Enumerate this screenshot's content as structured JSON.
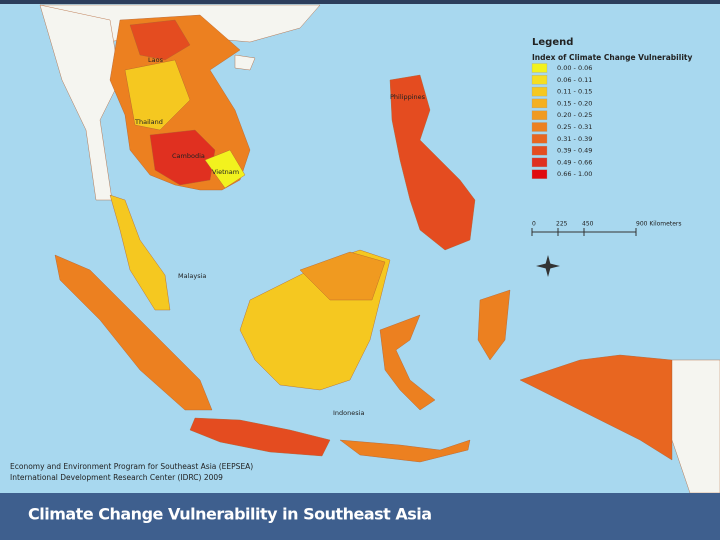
{
  "map": {
    "labels": [
      "Laos",
      "Thailand",
      "Cambodia",
      "Vietnam",
      "Philippines",
      "Malaysia",
      "Indonesia"
    ]
  },
  "legend": {
    "title": "Legend",
    "subtitle": "Index of Climate Change Vulnerability",
    "items": [
      {
        "label": "0.00 - 0.06",
        "color": "#f2f21e"
      },
      {
        "label": "0.06 - 0.11",
        "color": "#f5de22"
      },
      {
        "label": "0.11 - 0.15",
        "color": "#f5c820"
      },
      {
        "label": "0.15 - 0.20",
        "color": "#f4b020"
      },
      {
        "label": "0.20 - 0.25",
        "color": "#f09a20"
      },
      {
        "label": "0.25 - 0.31",
        "color": "#ec8020"
      },
      {
        "label": "0.31 - 0.39",
        "color": "#e86620"
      },
      {
        "label": "0.39 - 0.49",
        "color": "#e44c20"
      },
      {
        "label": "0.49 - 0.66",
        "color": "#e03020"
      },
      {
        "label": "0.66 - 1.00",
        "color": "#e00a10"
      }
    ]
  },
  "scale": {
    "labels": [
      "0",
      "225",
      "450",
      "900 Kilometers"
    ]
  },
  "credits": [
    "Economy and Environment Program for Southeast Asia (EEPSEA)",
    "International Development Research Center (IDRC) 2009"
  ],
  "title": "Climate Change Vulnerability in Southeast Asia"
}
